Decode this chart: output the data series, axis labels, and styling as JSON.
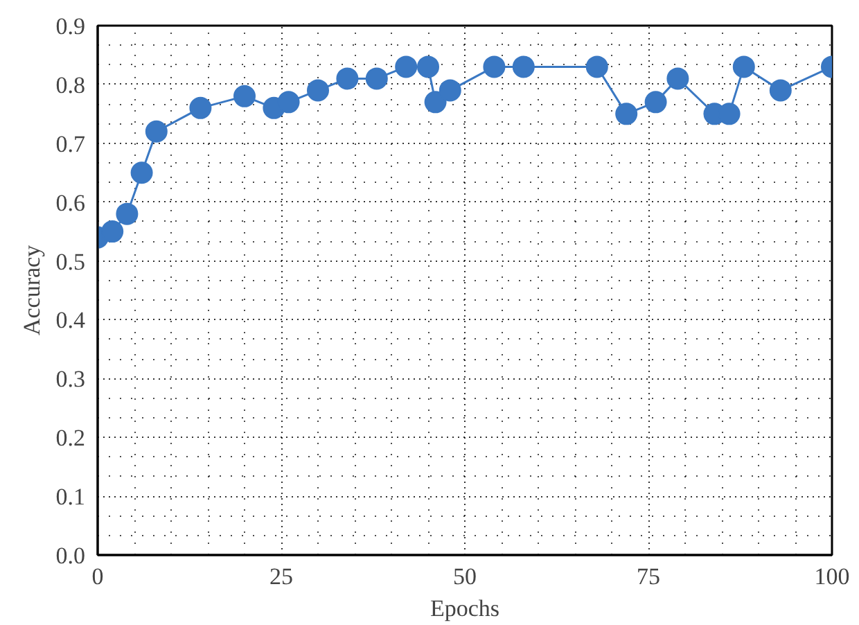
{
  "chart_data": {
    "type": "line",
    "xlabel": "Epochs",
    "ylabel": "Accuracy",
    "x": [
      0,
      2,
      4,
      6,
      8,
      14,
      20,
      24,
      26,
      30,
      34,
      38,
      42,
      45,
      46,
      48,
      54,
      58,
      68,
      72,
      76,
      79,
      84,
      86,
      88,
      93,
      100
    ],
    "series": [
      {
        "color": "#3a78c3",
        "values": [
          0.54,
          0.55,
          0.58,
          0.65,
          0.72,
          0.76,
          0.78,
          0.76,
          0.77,
          0.79,
          0.81,
          0.81,
          0.83,
          0.83,
          0.77,
          0.79,
          0.83,
          0.83,
          0.83,
          0.75,
          0.77,
          0.81,
          0.75,
          0.75,
          0.83,
          0.79,
          0.83
        ]
      }
    ],
    "xlim": [
      0,
      100
    ],
    "xticks": [
      0,
      25,
      50,
      75,
      100
    ],
    "ylim": [
      0,
      0.9
    ],
    "yticks": [
      {
        "value": 0,
        "label": "0.0"
      },
      0.1,
      0.2,
      0.3,
      0.4,
      0.5,
      0.6,
      0.7,
      0.8,
      0.9
    ],
    "grid": true,
    "marker": "circle",
    "line_style": "solid"
  }
}
